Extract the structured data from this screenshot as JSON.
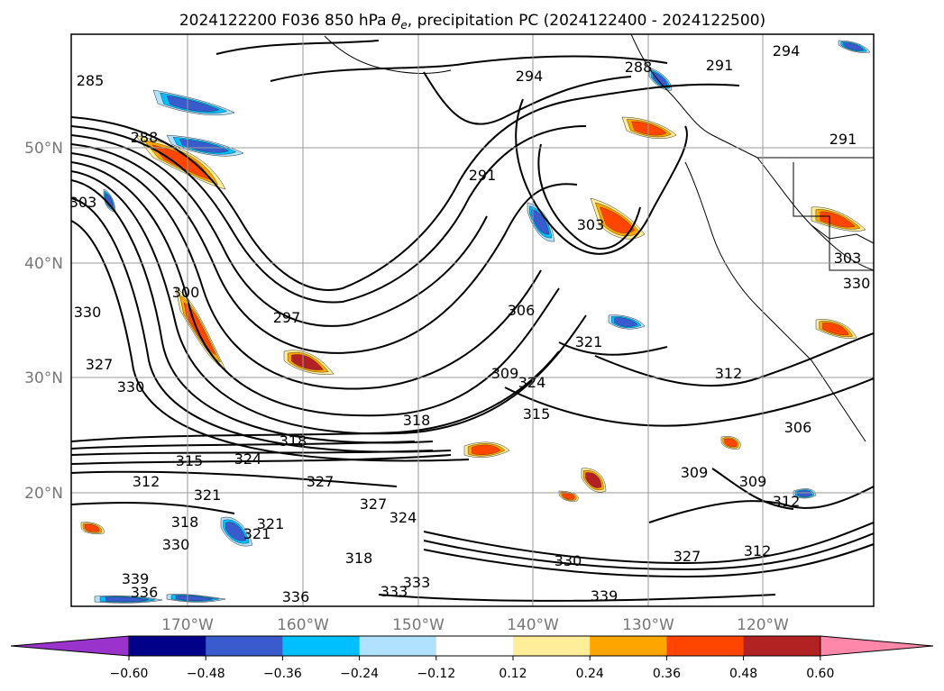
{
  "figure": {
    "title_text": "2024122200 F036 850 hPa ",
    "title_symbol": "θ",
    "title_subscript": "e",
    "title_tail": ", precipitation PC (2024122400 - 2024122500)"
  },
  "map": {
    "lon_ticks": [
      "170°W",
      "160°W",
      "150°W",
      "140°W",
      "130°W",
      "120°W"
    ],
    "lat_ticks": [
      "50°N",
      "40°N",
      "30°N",
      "20°N"
    ],
    "contour_labels": [
      "285",
      "294",
      "294",
      "291",
      "288",
      "288",
      "291",
      "291",
      "303",
      "303",
      "300",
      "297",
      "306",
      "303",
      "321",
      "324",
      "312",
      "330",
      "327",
      "330",
      "318",
      "324",
      "327",
      "315",
      "318",
      "315",
      "312",
      "312",
      "321",
      "309",
      "306",
      "309",
      "312",
      "327",
      "327",
      "324",
      "321",
      "321",
      "318",
      "330",
      "330",
      "339",
      "336",
      "336",
      "333",
      "333",
      "339",
      "318",
      "330",
      "309"
    ]
  },
  "colors": {
    "contour": "#000000",
    "grid": "#9a9a9a",
    "bins": [
      "#9933cc",
      "#000088",
      "#3a5bcd",
      "#00bfff",
      "#b0e2ff",
      "#ffffff",
      "#ffee99",
      "#ffa500",
      "#ff4500",
      "#b22222",
      "#ff88aa"
    ]
  },
  "colorbar": {
    "labels": [
      "−0.60",
      "−0.48",
      "−0.36",
      "−0.24",
      "−0.12",
      "0.12",
      "0.24",
      "0.36",
      "0.48",
      "0.60"
    ]
  }
}
